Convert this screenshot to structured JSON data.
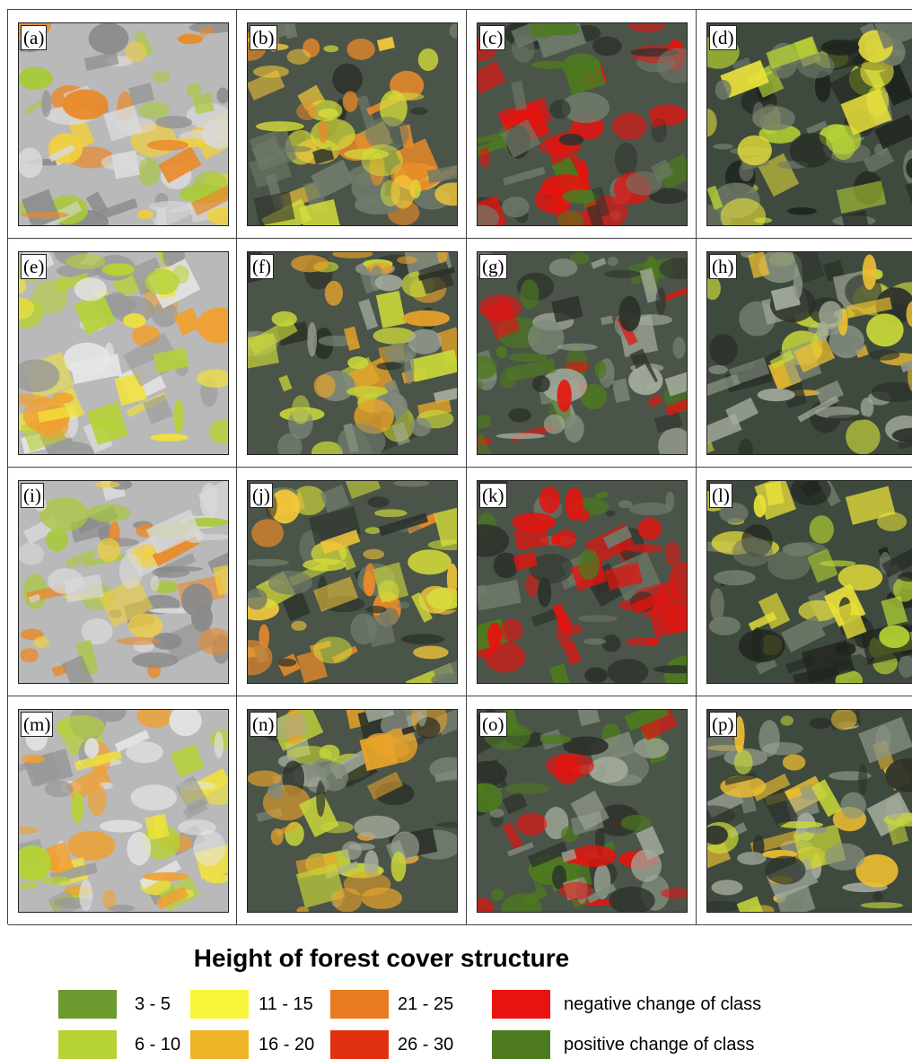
{
  "panels": [
    {
      "label": "(a)"
    },
    {
      "label": "(b)"
    },
    {
      "label": "(c)"
    },
    {
      "label": "(d)"
    },
    {
      "label": "(e)"
    },
    {
      "label": "(f)"
    },
    {
      "label": "(g)"
    },
    {
      "label": "(h)"
    },
    {
      "label": "(i)"
    },
    {
      "label": "(j)"
    },
    {
      "label": "(k)"
    },
    {
      "label": "(l)"
    },
    {
      "label": "(m)"
    },
    {
      "label": "(n)"
    },
    {
      "label": "(o)"
    },
    {
      "label": "(p)"
    }
  ],
  "legend": {
    "title": "Height of forest cover structure",
    "items": [
      {
        "label": "3 - 5",
        "color": "#6b9a2f"
      },
      {
        "label": "6 - 10",
        "color": "#b5d334"
      },
      {
        "label": "11 - 15",
        "color": "#f8f53a"
      },
      {
        "label": "16 - 20",
        "color": "#f0b429"
      },
      {
        "label": "21 - 25",
        "color": "#e87b1e"
      },
      {
        "label": "26 - 30",
        "color": "#e0300f"
      },
      {
        "label": "negative change of class",
        "color": "#e8120e"
      },
      {
        "label": "positive change of class",
        "color": "#4d7a1f"
      }
    ]
  }
}
